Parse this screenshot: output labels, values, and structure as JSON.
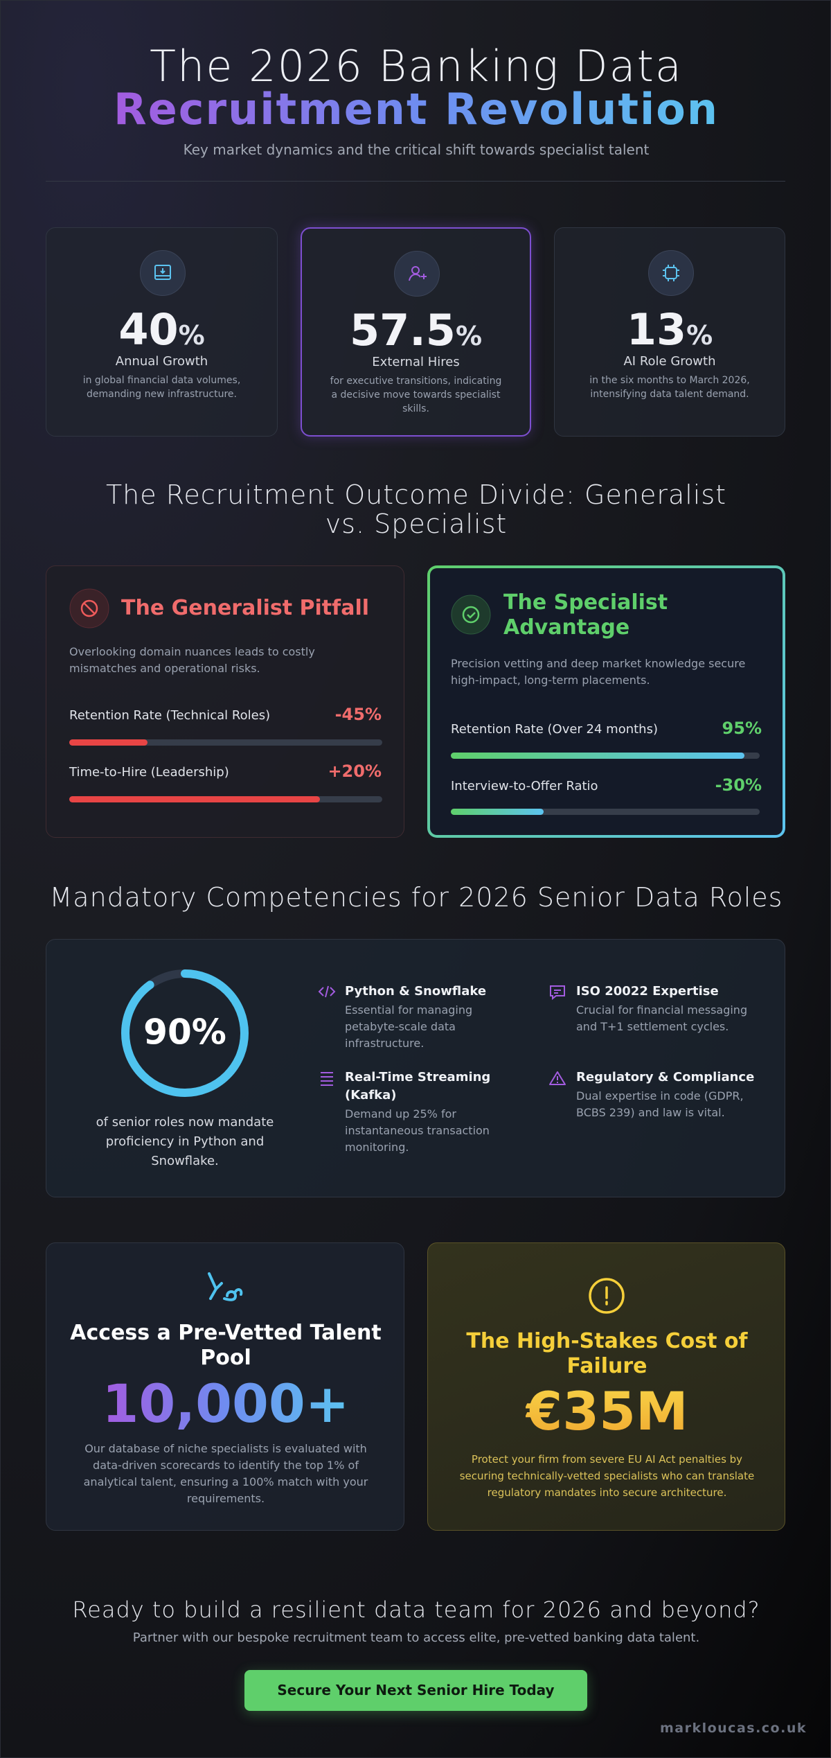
{
  "header": {
    "title_line1": "The 2026 Banking Data",
    "title_line2": "Recruitment Revolution",
    "subtitle": "Key market dynamics and the critical shift towards specialist talent"
  },
  "stats": [
    {
      "value": 40,
      "unit": "%",
      "label": "Annual Growth",
      "desc": "in global financial data volumes, demanding new infrastructure."
    },
    {
      "value": 57.5,
      "unit": "%",
      "label": "External Hires",
      "desc": "for executive transitions, indicating a decisive move towards specialist skills."
    },
    {
      "value": 13,
      "unit": "%",
      "label": "AI Role Growth",
      "desc": "in the six months to March 2026, intensifying data talent demand."
    }
  ],
  "divide": {
    "title": "The Recruitment Outcome Divide: Generalist vs. Specialist",
    "generalist": {
      "title": "The Generalist Pitfall",
      "desc": "Overlooking domain nuances leads to costly mismatches and operational risks.",
      "metrics": [
        {
          "label": "Retention Rate (Technical Roles)",
          "value": "-45%",
          "bar": 25
        },
        {
          "label": "Time-to-Hire (Leadership)",
          "value": "+20%",
          "bar": 80
        }
      ]
    },
    "specialist": {
      "title": "The Specialist Advantage",
      "desc": "Precision vetting and deep market knowledge secure high-impact, long-term placements.",
      "metrics": [
        {
          "label": "Retention Rate (Over 24 months)",
          "value": "95%",
          "bar": 95
        },
        {
          "label": "Interview-to-Offer Ratio",
          "value": "-30%",
          "bar": 30
        }
      ]
    }
  },
  "competencies": {
    "title": "Mandatory Competencies for 2026 Senior Data Roles",
    "ring": {
      "value": 90,
      "label": "90%"
    },
    "ring_caption": "of senior roles now mandate proficiency in Python and Snowflake.",
    "items": [
      {
        "title": "Python & Snowflake",
        "desc": "Essential for managing petabyte-scale data infrastructure."
      },
      {
        "title": "ISO 20022 Expertise",
        "desc": "Crucial for financial messaging and T+1 settlement cycles."
      },
      {
        "title": "Real-Time Streaming (Kafka)",
        "desc": "Demand up 25% for instantaneous transaction monitoring."
      },
      {
        "title": "Regulatory & Compliance",
        "desc": "Dual expertise in code (GDPR, BCBS 239) and law is vital."
      }
    ]
  },
  "talent": {
    "title": "Access a Pre-Vetted Talent Pool",
    "value": "10,000+",
    "desc": "Our database of niche specialists is evaluated with data-driven scorecards to identify the top 1% of analytical talent, ensuring a 100% match with your requirements."
  },
  "cost": {
    "title": "The High-Stakes Cost of Failure",
    "value": "€35M",
    "desc": "Protect your firm from severe EU AI Act penalties by securing technically-vetted specialists who can translate regulatory mandates into secure architecture."
  },
  "cta": {
    "title": "Ready to build a resilient data team for 2026 and beyond?",
    "subtitle": "Partner with our bespoke recruitment team to access elite, pre-vetted banking data talent.",
    "button": "Secure Your Next Senior Hire Today"
  },
  "footer": "markloucas.co.uk"
}
